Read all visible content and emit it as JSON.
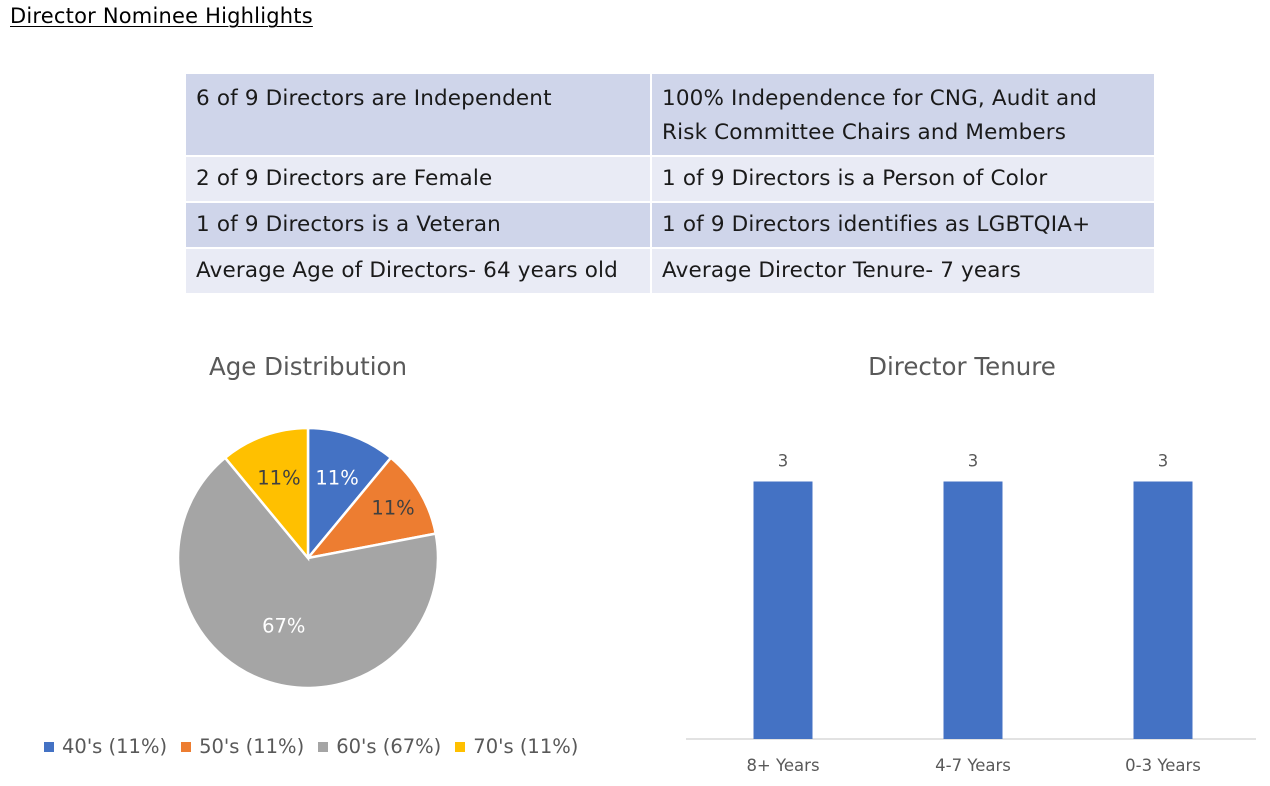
{
  "page_title": "Director Nominee Highlights",
  "highlights": [
    [
      "6 of 9 Directors are Independent",
      "100% Independence for CNG, Audit and Risk Committee Chairs and Members"
    ],
    [
      "2 of 9 Directors are Female",
      "1 of 9 Directors is a Person of Color"
    ],
    [
      "1 of 9 Directors is a Veteran",
      "1 of 9 Directors identifies as LGBTQIA+"
    ],
    [
      "Average Age of Directors- 64 years old",
      "Average Director Tenure- 7 years"
    ]
  ],
  "colors": {
    "blue": "#4472c4",
    "orange": "#ed7d31",
    "gray": "#a5a5a5",
    "gold": "#ffc000",
    "row_dark": "#cfd5ea",
    "row_light": "#e9ebf5"
  },
  "chart_data": [
    {
      "type": "pie",
      "title": "Age Distribution",
      "categories": [
        "40's",
        "50's",
        "60's",
        "70's"
      ],
      "values": [
        11,
        11,
        67,
        11
      ],
      "data_labels": [
        "11%",
        "11%",
        "67%",
        "11%"
      ],
      "legend_labels": [
        "40's (11%)",
        "50's (11%)",
        "60's (67%)",
        "70's (11%)"
      ],
      "legend_position": "bottom"
    },
    {
      "type": "bar",
      "title": "Director Tenure",
      "categories": [
        "8+ Years",
        "4-7 Years",
        "0-3 Years"
      ],
      "values": [
        3,
        3,
        3
      ],
      "data_labels": [
        "3",
        "3",
        "3"
      ],
      "ylim": [
        0,
        3.6
      ],
      "grid": false
    }
  ]
}
